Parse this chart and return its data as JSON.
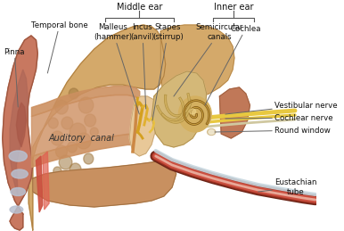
{
  "background_color": "#ffffff",
  "figsize": [
    3.86,
    2.59
  ],
  "dpi": 100,
  "bracket_color": "#555555",
  "line_color": "#666666",
  "text_color": "#111111",
  "colors": {
    "pinna": "#c87860",
    "pinna_dark": "#a05840",
    "pinna_inner": "#b06858",
    "bone": "#d4a96a",
    "bone_spot": "#a07840",
    "canal_outer": "#cc9060",
    "canal_inner": "#b07050",
    "mid_ear": "#e8c898",
    "inner_ear": "#d4b878",
    "cochlea": "#c8a040",
    "cochlea_bg": "#d4b060",
    "nerve_yellow": "#e8c840",
    "nerve_gray": "#d0c0a0",
    "eustachian_outer": "#8B3020",
    "eustachian_inner": "#c05040",
    "gray_blue": "#b8c0d0",
    "red_tissue": "#cc5040",
    "skin_red": "#d07060",
    "tympanic": "#cc8844",
    "ossicle": "#d4a020",
    "bg_tan": "#dec080",
    "white": "#f5f0e8",
    "face_skin": "#c07858"
  },
  "labels": {
    "middle_ear": "Middle ear",
    "inner_ear": "Inner ear",
    "temporal_bone": "Temporal bone",
    "pinna": "Pinna",
    "malleus": "Malleus\n(hammer)",
    "incus": "Incus\n(anvil)",
    "stapes": "Stapes\n(stirrup)",
    "semicircular": "Semicircular\ncanals",
    "cochlea": "Cochlea",
    "auditory_canal": "Auditory  canal",
    "vestibular": "Vestibular nerve",
    "cochlear": "Cochlear nerve",
    "round_window": "Round window",
    "eustachian": "Eustachian\ntube"
  }
}
